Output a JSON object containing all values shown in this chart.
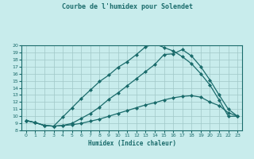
{
  "title": "Courbe de l'humidex pour Solendet",
  "xlabel": "Humidex (Indice chaleur)",
  "bg_color": "#c8ecec",
  "line_color": "#1a6b6b",
  "grid_color": "#a0c8c8",
  "xlim": [
    -0.5,
    23.5
  ],
  "ylim": [
    8,
    20
  ],
  "xticks": [
    0,
    1,
    2,
    3,
    4,
    5,
    6,
    7,
    8,
    9,
    10,
    11,
    12,
    13,
    14,
    15,
    16,
    17,
    18,
    19,
    20,
    21,
    22,
    23
  ],
  "yticks": [
    8,
    9,
    10,
    11,
    12,
    13,
    14,
    15,
    16,
    17,
    18,
    19,
    20
  ],
  "curve1_x": [
    0,
    1,
    2,
    3,
    4,
    5,
    6,
    7,
    8,
    9,
    10,
    11,
    12,
    13,
    14,
    15,
    16,
    17,
    18,
    19,
    20,
    21,
    22,
    23
  ],
  "curve1_y": [
    9.4,
    9.1,
    8.7,
    8.6,
    8.7,
    8.8,
    9.0,
    9.3,
    9.6,
    10.0,
    10.4,
    10.8,
    11.2,
    11.6,
    11.9,
    12.3,
    12.6,
    12.8,
    12.9,
    12.7,
    12.0,
    11.5,
    10.5,
    10.0
  ],
  "curve2_x": [
    0,
    1,
    2,
    3,
    4,
    5,
    6,
    7,
    8,
    9,
    10,
    11,
    12,
    13,
    14,
    15,
    16,
    17,
    18,
    19,
    20,
    21,
    22,
    23
  ],
  "curve2_y": [
    9.4,
    9.1,
    8.7,
    8.6,
    8.7,
    9.0,
    9.7,
    10.4,
    11.3,
    12.4,
    13.3,
    14.3,
    15.3,
    16.3,
    17.3,
    18.7,
    18.8,
    19.4,
    18.5,
    17.0,
    15.1,
    13.0,
    11.0,
    10.0
  ],
  "curve3_x": [
    0,
    1,
    2,
    3,
    4,
    5,
    6,
    7,
    8,
    9,
    10,
    11,
    12,
    13,
    14,
    15,
    16,
    17,
    18,
    19,
    20,
    21,
    22,
    23
  ],
  "curve3_y": [
    9.4,
    9.1,
    8.7,
    8.6,
    9.9,
    11.2,
    12.5,
    13.7,
    14.9,
    15.8,
    16.9,
    17.7,
    18.7,
    19.8,
    20.2,
    19.7,
    19.2,
    18.4,
    17.4,
    16.0,
    14.4,
    12.3,
    10.0,
    10.0
  ]
}
